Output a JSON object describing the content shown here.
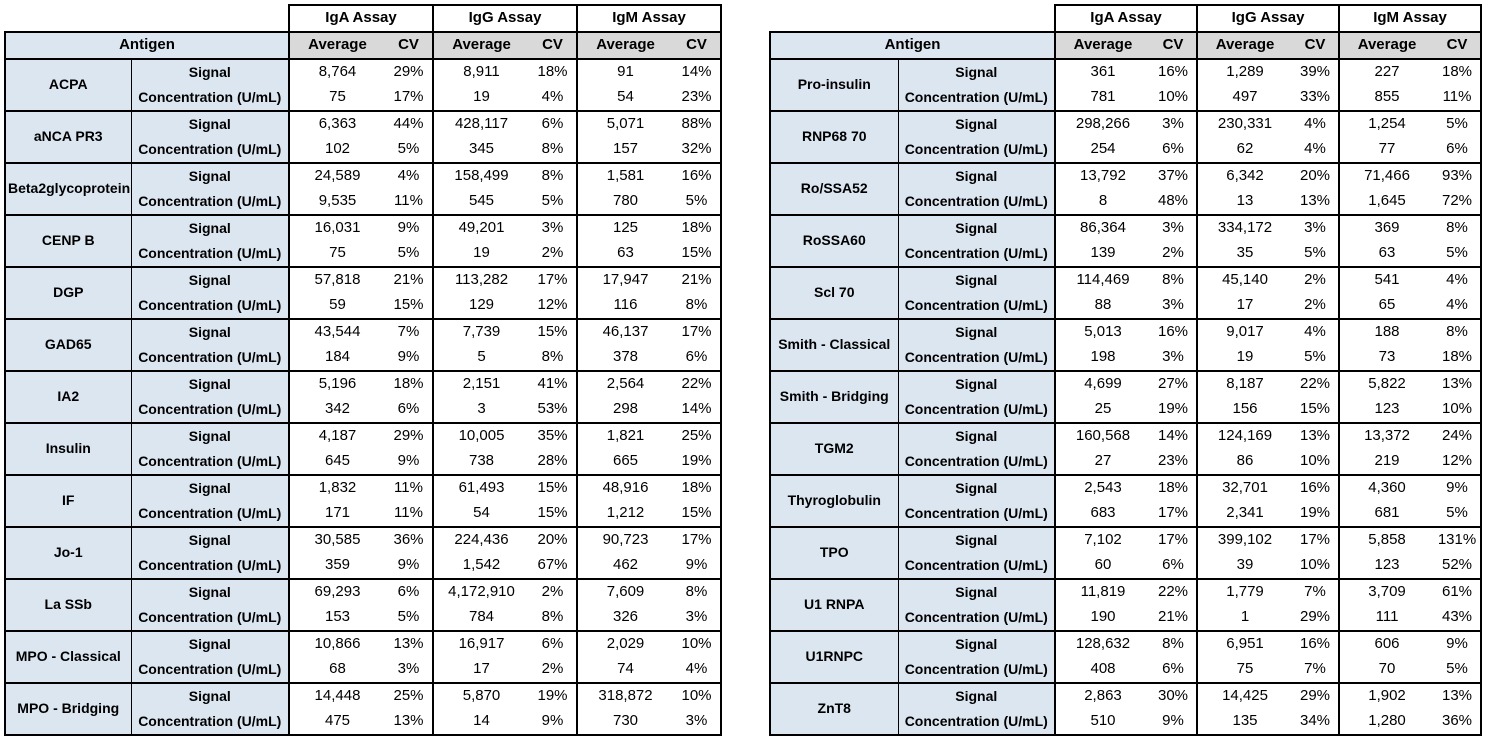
{
  "header": {
    "antigen_label": "Antigen",
    "assay_groups": [
      "IgA Assay",
      "IgG Assay",
      "IgM Assay"
    ],
    "subheaders": [
      "Average",
      "CV"
    ],
    "row_labels": [
      "Signal",
      "Concentration (U/mL)"
    ]
  },
  "colors": {
    "antigen_bg": "#DCE6F1",
    "header_gray": "#D9D9D9",
    "border": "#000000"
  },
  "tables": [
    {
      "rows": [
        {
          "antigen": "ACPA",
          "signal": [
            "8,764",
            "29%",
            "8,911",
            "18%",
            "91",
            "14%"
          ],
          "concentration": [
            "75",
            "17%",
            "19",
            "4%",
            "54",
            "23%"
          ]
        },
        {
          "antigen": "aNCA PR3",
          "signal": [
            "6,363",
            "44%",
            "428,117",
            "6%",
            "5,071",
            "88%"
          ],
          "concentration": [
            "102",
            "5%",
            "345",
            "8%",
            "157",
            "32%"
          ]
        },
        {
          "antigen": "Beta2glycoprotein",
          "signal": [
            "24,589",
            "4%",
            "158,499",
            "8%",
            "1,581",
            "16%"
          ],
          "concentration": [
            "9,535",
            "11%",
            "545",
            "5%",
            "780",
            "5%"
          ]
        },
        {
          "antigen": "CENP B",
          "signal": [
            "16,031",
            "9%",
            "49,201",
            "3%",
            "125",
            "18%"
          ],
          "concentration": [
            "75",
            "5%",
            "19",
            "2%",
            "63",
            "15%"
          ]
        },
        {
          "antigen": "DGP",
          "signal": [
            "57,818",
            "21%",
            "113,282",
            "17%",
            "17,947",
            "21%"
          ],
          "concentration": [
            "59",
            "15%",
            "129",
            "12%",
            "116",
            "8%"
          ]
        },
        {
          "antigen": "GAD65",
          "signal": [
            "43,544",
            "7%",
            "7,739",
            "15%",
            "46,137",
            "17%"
          ],
          "concentration": [
            "184",
            "9%",
            "5",
            "8%",
            "378",
            "6%"
          ]
        },
        {
          "antigen": "IA2",
          "signal": [
            "5,196",
            "18%",
            "2,151",
            "41%",
            "2,564",
            "22%"
          ],
          "concentration": [
            "342",
            "6%",
            "3",
            "53%",
            "298",
            "14%"
          ]
        },
        {
          "antigen": "Insulin",
          "signal": [
            "4,187",
            "29%",
            "10,005",
            "35%",
            "1,821",
            "25%"
          ],
          "concentration": [
            "645",
            "9%",
            "738",
            "28%",
            "665",
            "19%"
          ]
        },
        {
          "antigen": "IF",
          "signal": [
            "1,832",
            "11%",
            "61,493",
            "15%",
            "48,916",
            "18%"
          ],
          "concentration": [
            "171",
            "11%",
            "54",
            "15%",
            "1,212",
            "15%"
          ]
        },
        {
          "antigen": "Jo-1",
          "signal": [
            "30,585",
            "36%",
            "224,436",
            "20%",
            "90,723",
            "17%"
          ],
          "concentration": [
            "359",
            "9%",
            "1,542",
            "67%",
            "462",
            "9%"
          ]
        },
        {
          "antigen": "La SSb",
          "signal": [
            "69,293",
            "6%",
            "4,172,910",
            "2%",
            "7,609",
            "8%"
          ],
          "concentration": [
            "153",
            "5%",
            "784",
            "8%",
            "326",
            "3%"
          ]
        },
        {
          "antigen": "MPO - Classical",
          "signal": [
            "10,866",
            "13%",
            "16,917",
            "6%",
            "2,029",
            "10%"
          ],
          "concentration": [
            "68",
            "3%",
            "17",
            "2%",
            "74",
            "4%"
          ]
        },
        {
          "antigen": "MPO - Bridging",
          "signal": [
            "14,448",
            "25%",
            "5,870",
            "19%",
            "318,872",
            "10%"
          ],
          "concentration": [
            "475",
            "13%",
            "14",
            "9%",
            "730",
            "3%"
          ]
        }
      ]
    },
    {
      "rows": [
        {
          "antigen": "Pro-insulin",
          "signal": [
            "361",
            "16%",
            "1,289",
            "39%",
            "227",
            "18%"
          ],
          "concentration": [
            "781",
            "10%",
            "497",
            "33%",
            "855",
            "11%"
          ]
        },
        {
          "antigen": "RNP68 70",
          "signal": [
            "298,266",
            "3%",
            "230,331",
            "4%",
            "1,254",
            "5%"
          ],
          "concentration": [
            "254",
            "6%",
            "62",
            "4%",
            "77",
            "6%"
          ]
        },
        {
          "antigen": "Ro/SSA52",
          "signal": [
            "13,792",
            "37%",
            "6,342",
            "20%",
            "71,466",
            "93%"
          ],
          "concentration": [
            "8",
            "48%",
            "13",
            "13%",
            "1,645",
            "72%"
          ]
        },
        {
          "antigen": "RoSSA60",
          "signal": [
            "86,364",
            "3%",
            "334,172",
            "3%",
            "369",
            "8%"
          ],
          "concentration": [
            "139",
            "2%",
            "35",
            "5%",
            "63",
            "5%"
          ]
        },
        {
          "antigen": "Scl 70",
          "signal": [
            "114,469",
            "8%",
            "45,140",
            "2%",
            "541",
            "4%"
          ],
          "concentration": [
            "88",
            "3%",
            "17",
            "2%",
            "65",
            "4%"
          ]
        },
        {
          "antigen": "Smith - Classical",
          "signal": [
            "5,013",
            "16%",
            "9,017",
            "4%",
            "188",
            "8%"
          ],
          "concentration": [
            "198",
            "3%",
            "19",
            "5%",
            "73",
            "18%"
          ]
        },
        {
          "antigen": "Smith - Bridging",
          "signal": [
            "4,699",
            "27%",
            "8,187",
            "22%",
            "5,822",
            "13%"
          ],
          "concentration": [
            "25",
            "19%",
            "156",
            "15%",
            "123",
            "10%"
          ]
        },
        {
          "antigen": "TGM2",
          "signal": [
            "160,568",
            "14%",
            "124,169",
            "13%",
            "13,372",
            "24%"
          ],
          "concentration": [
            "27",
            "23%",
            "86",
            "10%",
            "219",
            "12%"
          ]
        },
        {
          "antigen": "Thyroglobulin",
          "signal": [
            "2,543",
            "18%",
            "32,701",
            "16%",
            "4,360",
            "9%"
          ],
          "concentration": [
            "683",
            "17%",
            "2,341",
            "19%",
            "681",
            "5%"
          ]
        },
        {
          "antigen": "TPO",
          "signal": [
            "7,102",
            "17%",
            "399,102",
            "17%",
            "5,858",
            "131%"
          ],
          "concentration": [
            "60",
            "6%",
            "39",
            "10%",
            "123",
            "52%"
          ]
        },
        {
          "antigen": "U1 RNPA",
          "signal": [
            "11,819",
            "22%",
            "1,779",
            "7%",
            "3,709",
            "61%"
          ],
          "concentration": [
            "190",
            "21%",
            "1",
            "29%",
            "111",
            "43%"
          ]
        },
        {
          "antigen": "U1RNPC",
          "signal": [
            "128,632",
            "8%",
            "6,951",
            "16%",
            "606",
            "9%"
          ],
          "concentration": [
            "408",
            "6%",
            "75",
            "7%",
            "70",
            "5%"
          ]
        },
        {
          "antigen": "ZnT8",
          "signal": [
            "2,863",
            "30%",
            "14,425",
            "29%",
            "1,902",
            "13%"
          ],
          "concentration": [
            "510",
            "9%",
            "135",
            "34%",
            "1,280",
            "36%"
          ]
        }
      ]
    }
  ]
}
